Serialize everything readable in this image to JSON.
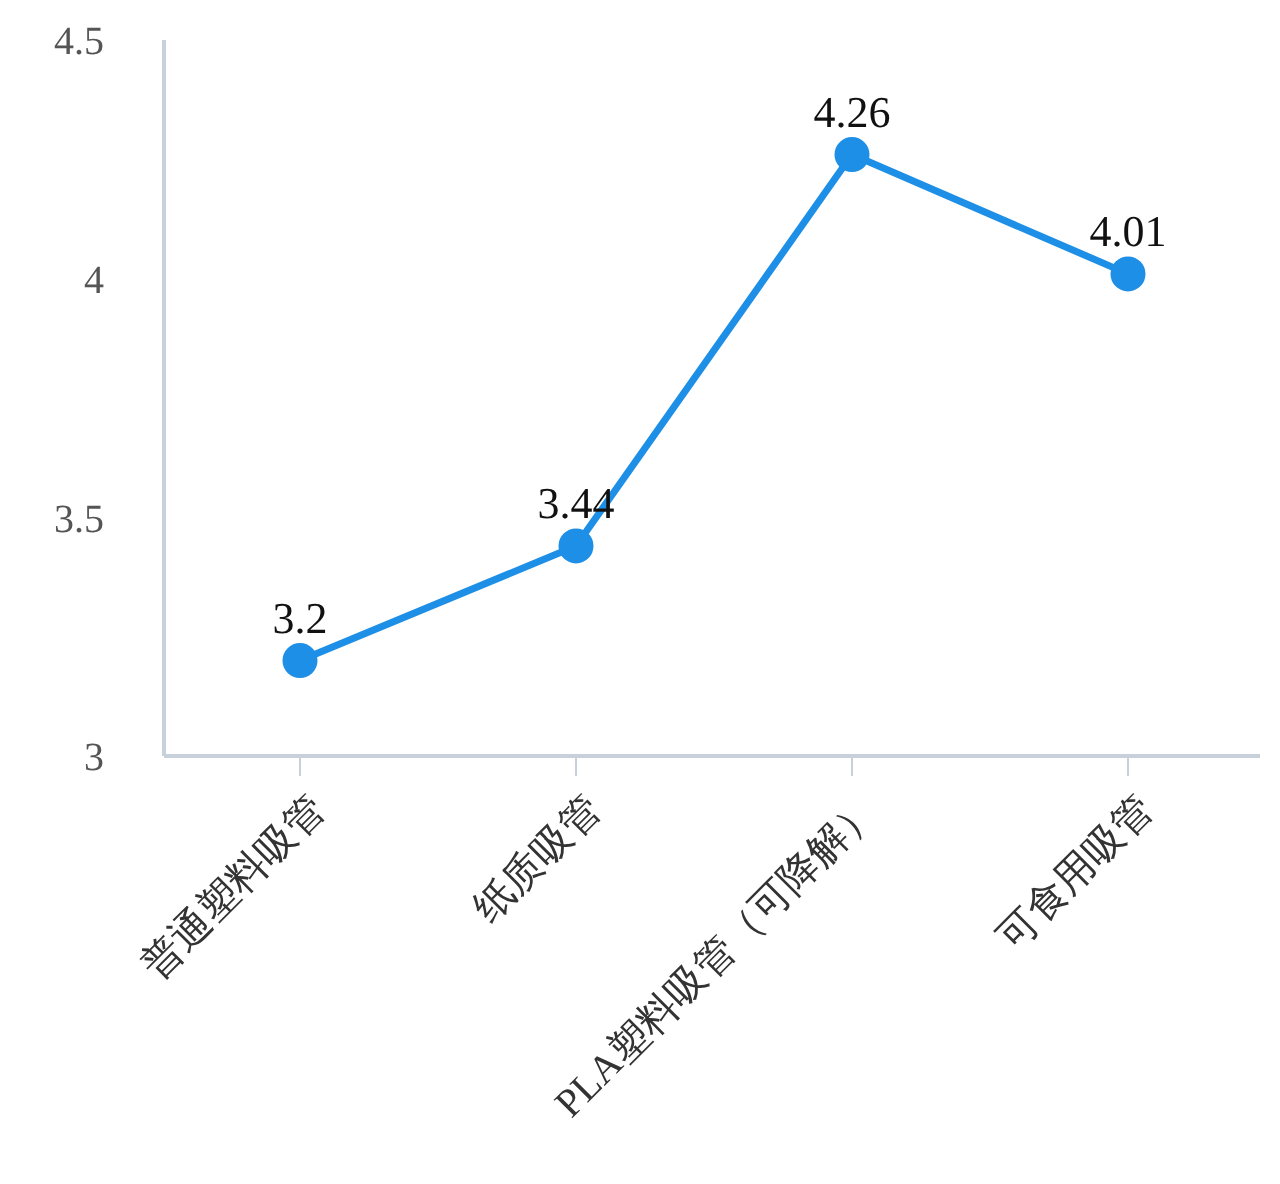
{
  "chart_data": {
    "type": "line",
    "categories": [
      "普通塑料吸管",
      "纸质吸管",
      "PLA塑料吸管（可降解）",
      "可食用吸管"
    ],
    "series": [
      {
        "color": "#1e8fe6",
        "values": [
          3.2,
          3.44,
          4.26,
          4.01
        ]
      }
    ],
    "ylim": [
      3,
      4.5
    ],
    "yticks": [
      3,
      3.5,
      4,
      4.5
    ],
    "data_labels": true,
    "marker": "circle",
    "grid": false,
    "legend": false
  }
}
